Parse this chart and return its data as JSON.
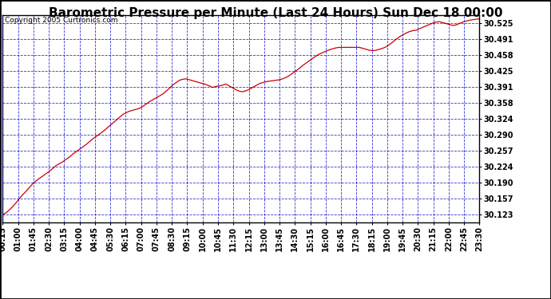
{
  "title": "Barometric Pressure per Minute (Last 24 Hours) Sun Dec 18 00:00",
  "copyright_text": "Copyright 2005 Curtronics.com",
  "x_labels": [
    "00:15",
    "01:00",
    "01:45",
    "02:30",
    "03:15",
    "04:00",
    "04:45",
    "05:30",
    "06:15",
    "07:00",
    "07:45",
    "08:30",
    "09:15",
    "10:00",
    "10:45",
    "11:30",
    "12:15",
    "13:00",
    "13:45",
    "14:30",
    "15:15",
    "16:00",
    "16:45",
    "17:30",
    "18:15",
    "19:00",
    "19:45",
    "20:30",
    "21:15",
    "22:00",
    "22:45",
    "23:30"
  ],
  "y_ticks": [
    30.123,
    30.157,
    30.19,
    30.224,
    30.257,
    30.29,
    30.324,
    30.358,
    30.391,
    30.425,
    30.458,
    30.491,
    30.525
  ],
  "y_min": 30.106,
  "y_max": 30.542,
  "line_color": "#cc0000",
  "background_color": "#ffffff",
  "plot_bg_color": "#ffffff",
  "grid_color": "#0000cc",
  "title_fontsize": 11,
  "copyright_fontsize": 6.5,
  "tick_label_fontsize": 7,
  "pressure_data": [
    30.123,
    30.127,
    30.133,
    30.14,
    30.148,
    30.157,
    30.165,
    30.172,
    30.18,
    30.188,
    30.194,
    30.199,
    30.204,
    30.209,
    30.214,
    30.22,
    30.226,
    30.23,
    30.234,
    30.239,
    30.244,
    30.25,
    30.255,
    30.26,
    30.265,
    30.27,
    30.276,
    30.282,
    30.287,
    30.292,
    30.297,
    30.303,
    30.309,
    30.315,
    30.321,
    30.327,
    30.333,
    30.337,
    30.34,
    30.342,
    30.344,
    30.346,
    30.35,
    30.355,
    30.36,
    30.364,
    30.368,
    30.372,
    30.376,
    30.382,
    30.388,
    30.395,
    30.4,
    30.405,
    30.407,
    30.408,
    30.406,
    30.404,
    30.402,
    30.4,
    30.398,
    30.396,
    30.393,
    30.39,
    30.392,
    30.393,
    30.395,
    30.397,
    30.393,
    30.389,
    30.385,
    30.382,
    30.381,
    30.383,
    30.386,
    30.39,
    30.394,
    30.398,
    30.4,
    30.402,
    30.403,
    30.404,
    30.405,
    30.406,
    30.408,
    30.411,
    30.415,
    30.42,
    30.425,
    30.43,
    30.436,
    30.441,
    30.446,
    30.451,
    30.456,
    30.46,
    30.463,
    30.466,
    30.469,
    30.471,
    30.473,
    30.474,
    30.474,
    30.474,
    30.474,
    30.474,
    30.474,
    30.474,
    30.472,
    30.47,
    30.468,
    30.467,
    30.468,
    30.47,
    30.472,
    30.475,
    30.48,
    30.485,
    30.491,
    30.496,
    30.5,
    30.504,
    30.507,
    30.509,
    30.51,
    30.513,
    30.516,
    30.519,
    30.522,
    30.525,
    30.527,
    30.528,
    30.526,
    30.524,
    30.522,
    30.52,
    30.521,
    30.524,
    30.527,
    30.529,
    30.531,
    30.532,
    30.533,
    30.534
  ]
}
